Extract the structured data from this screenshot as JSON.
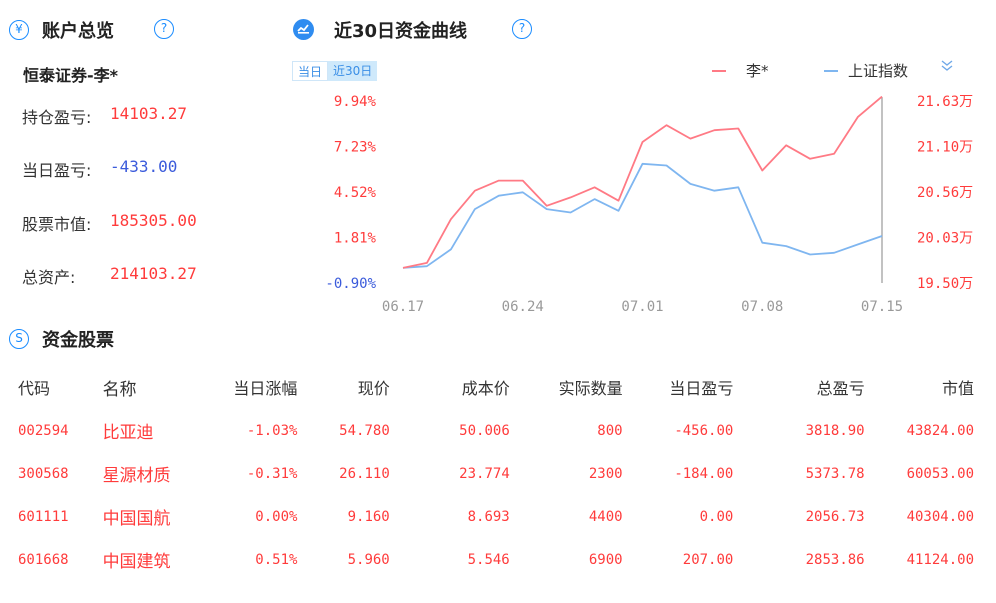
{
  "account_section": {
    "title": "账户总览",
    "title_icon": "yen-icon",
    "help_icon": "help-icon",
    "account_name": "恒泰证券-李*",
    "rows": [
      {
        "label": "持仓盈亏:",
        "value": "14103.27",
        "color": "#ff3b3b"
      },
      {
        "label": "当日盈亏:",
        "value": "-433.00",
        "color": "#3b5bdb"
      },
      {
        "label": "股票市值:",
        "value": "185305.00",
        "color": "#ff3b3b"
      },
      {
        "label": "总资产:",
        "value": "214103.27",
        "color": "#ff3b3b"
      }
    ]
  },
  "curve_section": {
    "title": "近30日资金曲线",
    "title_icon": "chart-icon",
    "help_icon": "help-icon",
    "tabs": [
      {
        "label": "当日",
        "active": false
      },
      {
        "label": "近30日",
        "active": true
      }
    ],
    "legend": [
      {
        "name": "李*",
        "color": "#ff7a85"
      },
      {
        "name": "上证指数",
        "color": "#7fb6f0"
      }
    ],
    "collapse_icon": "double-chevron-down-icon"
  },
  "chart_data": {
    "type": "line",
    "x_ticks": [
      "06.17",
      "06.24",
      "07.01",
      "07.08",
      "07.15"
    ],
    "left_axis_ticks": [
      "9.94%",
      "7.23%",
      "4.52%",
      "1.81%",
      "-0.90%"
    ],
    "right_axis_ticks": [
      "21.63万",
      "21.10万",
      "20.56万",
      "20.03万",
      "19.50万"
    ],
    "left_axis_range_pct": [
      -0.9,
      9.94
    ],
    "right_axis_range_wan": [
      19.5,
      21.63
    ],
    "points_count": 21,
    "series": [
      {
        "name": "李*",
        "color": "#ff7a85",
        "values_pct": [
          0.0,
          0.3,
          2.9,
          4.6,
          5.2,
          5.2,
          3.7,
          4.2,
          4.8,
          4.0,
          7.5,
          8.5,
          7.7,
          8.2,
          8.3,
          5.8,
          7.3,
          6.5,
          6.8,
          9.0,
          10.2
        ]
      },
      {
        "name": "上证指数",
        "color": "#7fb6f0",
        "values_pct": [
          0.0,
          0.1,
          1.1,
          3.5,
          4.3,
          4.5,
          3.5,
          3.3,
          4.1,
          3.4,
          6.2,
          6.1,
          5.0,
          4.6,
          4.8,
          1.5,
          1.3,
          0.8,
          0.9,
          1.4,
          1.9
        ]
      }
    ]
  },
  "holdings_section": {
    "title": "资金股票",
    "title_icon": "s-icon",
    "columns": [
      "代码",
      "名称",
      "当日涨幅",
      "现价",
      "成本价",
      "实际数量",
      "当日盈亏",
      "总盈亏",
      "市值"
    ],
    "rows": [
      {
        "code": "002594",
        "name": "比亚迪",
        "pct": "-1.03%",
        "price": "54.780",
        "cost": "50.006",
        "qty": "800",
        "day_pnl": "-456.00",
        "total_pnl": "3818.90",
        "mv": "43824.00"
      },
      {
        "code": "300568",
        "name": "星源材质",
        "pct": "-0.31%",
        "price": "26.110",
        "cost": "23.774",
        "qty": "2300",
        "day_pnl": "-184.00",
        "total_pnl": "5373.78",
        "mv": "60053.00"
      },
      {
        "code": "601111",
        "name": "中国国航",
        "pct": "0.00%",
        "price": "9.160",
        "cost": "8.693",
        "qty": "4400",
        "day_pnl": "0.00",
        "total_pnl": "2056.73",
        "mv": "40304.00"
      },
      {
        "code": "601668",
        "name": "中国建筑",
        "pct": "0.51%",
        "price": "5.960",
        "cost": "5.546",
        "qty": "6900",
        "day_pnl": "207.00",
        "total_pnl": "2853.86",
        "mv": "41124.00"
      }
    ]
  }
}
